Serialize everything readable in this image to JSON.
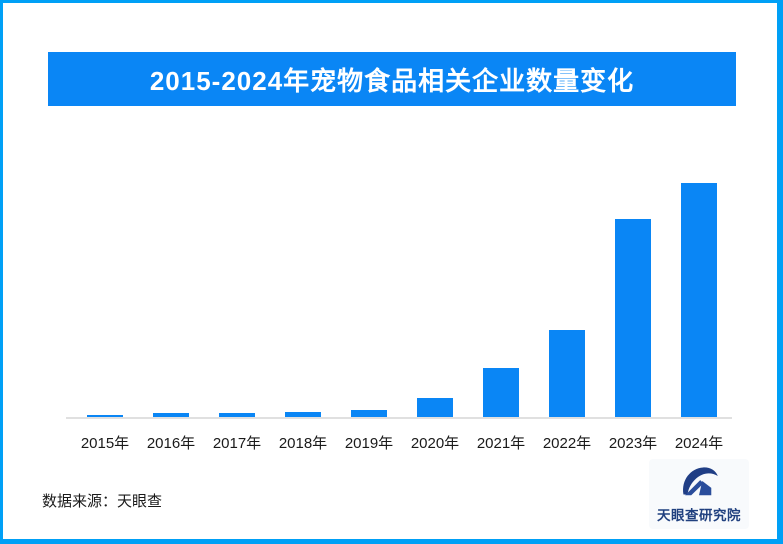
{
  "page": {
    "title_banner": "2015-2024年宠物食品相关企业数量变化"
  },
  "footer": {
    "source": "数据来源：天眼查",
    "brand": "天眼查研究院"
  },
  "colors": {
    "banner_blue": "#0a86f5",
    "bar_blue": "#0a86f5",
    "frame_blue": "#00a0f6",
    "baseline_gray": "#e0e0e0",
    "brand_navy": "#20407f",
    "title_text_white": "#ffffff",
    "label_black": "#1a1a1a"
  },
  "chart_data": {
    "type": "bar",
    "title": "2015-2024年宠物食品相关企业数量变化",
    "categories": [
      "2015年",
      "2016年",
      "2017年",
      "2018年",
      "2019年",
      "2020年",
      "2021年",
      "2022年",
      "2023年",
      "2024年"
    ],
    "values": [
      1.1,
      2.3,
      2.0,
      2.7,
      3.4,
      8.5,
      21.3,
      37.4,
      84.7,
      100
    ],
    "value_scale": "relative index, 2024 = 100 (chart shows no numeric axis or data labels)",
    "xlabel": "",
    "ylabel": "",
    "ylim": [
      0,
      102
    ],
    "grid": false,
    "legend": false,
    "bar_color": "#0a86f5"
  }
}
